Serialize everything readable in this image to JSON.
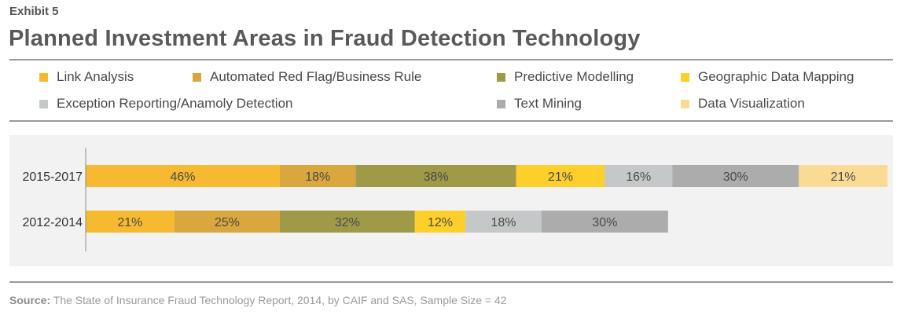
{
  "exhibit_label": "Exhibit 5",
  "chart_data": {
    "type": "bar",
    "orientation": "horizontal",
    "stacked": true,
    "title": "Planned Investment Areas in Fraud Detection Technology",
    "categories": [
      "2015-2017",
      "2012-2014"
    ],
    "series": [
      {
        "name": "Link Analysis",
        "color": "#f6b92f",
        "values": [
          46,
          21
        ]
      },
      {
        "name": "Automated Red Flag/Business Rule",
        "color": "#d9a73d",
        "values": [
          18,
          25
        ]
      },
      {
        "name": "Predictive Modelling",
        "color": "#9f9a48",
        "values": [
          38,
          32
        ]
      },
      {
        "name": "Geographic Data Mapping",
        "color": "#fccf2a",
        "values": [
          21,
          12
        ]
      },
      {
        "name": "Exception Reporting/Anamoly Detection",
        "color": "#c5c8c8",
        "values": [
          16,
          18
        ]
      },
      {
        "name": "Text Mining",
        "color": "#acacac",
        "values": [
          30,
          30
        ]
      },
      {
        "name": "Data Visualization",
        "color": "#fbdb94",
        "values": [
          21,
          null
        ]
      }
    ],
    "data_labels": [
      [
        "46%",
        "18%",
        "38%",
        "21%",
        "16%",
        "30%",
        "21%"
      ],
      [
        "21%",
        "25%",
        "32%",
        "12%",
        "18%",
        "30%"
      ]
    ],
    "legend_position": "top",
    "grid": false
  },
  "source": {
    "label": "Source:",
    "text": " The State of Insurance Fraud Technology Report, 2014, by CAIF and SAS, Sample Size = 42"
  }
}
